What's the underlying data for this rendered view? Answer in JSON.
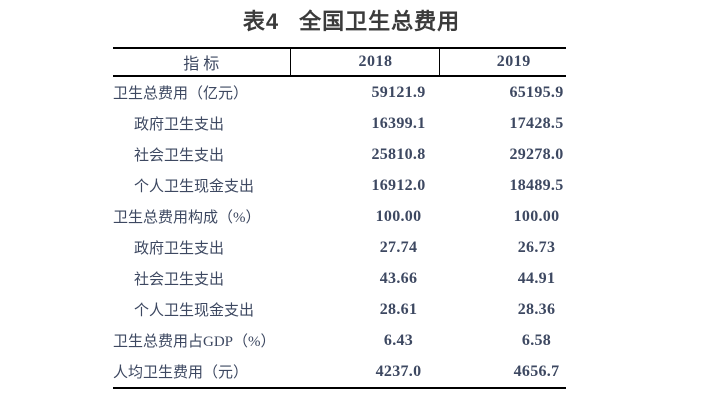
{
  "title": {
    "table_no": "表4",
    "text": "全国卫生总费用"
  },
  "table": {
    "columns": [
      "指 标",
      "2018",
      "2019"
    ],
    "rows": [
      {
        "label": "卫生总费用（亿元）",
        "indent": false,
        "v2018": "59121.9",
        "v2019": "65195.9"
      },
      {
        "label": "政府卫生支出",
        "indent": true,
        "v2018": "16399.1",
        "v2019": "17428.5"
      },
      {
        "label": "社会卫生支出",
        "indent": true,
        "v2018": "25810.8",
        "v2019": "29278.0"
      },
      {
        "label": "个人卫生现金支出",
        "indent": true,
        "v2018": "16912.0",
        "v2019": "18489.5"
      },
      {
        "label": "卫生总费用构成（%）",
        "indent": false,
        "v2018": "100.00",
        "v2019": "100.00"
      },
      {
        "label": "政府卫生支出",
        "indent": true,
        "v2018": "27.74",
        "v2019": "26.73"
      },
      {
        "label": "社会卫生支出",
        "indent": true,
        "v2018": "43.66",
        "v2019": "44.91"
      },
      {
        "label": "个人卫生现金支出",
        "indent": true,
        "v2018": "28.61",
        "v2019": "28.36"
      },
      {
        "label": "卫生总费用占GDP（%）",
        "indent": false,
        "v2018": "6.43",
        "v2019": "6.58"
      },
      {
        "label": "人均卫生费用（元）",
        "indent": false,
        "v2018": "4237.0",
        "v2019": "4656.7"
      }
    ]
  },
  "chart_data": {
    "type": "table",
    "title": "表4 全国卫生总费用",
    "categories": [
      "2018",
      "2019"
    ],
    "series": [
      {
        "name": "卫生总费用（亿元）",
        "values": [
          59121.9,
          65195.9
        ]
      },
      {
        "name": "政府卫生支出（亿元）",
        "values": [
          16399.1,
          17428.5
        ]
      },
      {
        "name": "社会卫生支出（亿元）",
        "values": [
          25810.8,
          29278.0
        ]
      },
      {
        "name": "个人卫生现金支出（亿元）",
        "values": [
          16912.0,
          18489.5
        ]
      },
      {
        "name": "卫生总费用构成（%）",
        "values": [
          100.0,
          100.0
        ]
      },
      {
        "name": "政府卫生支出构成（%）",
        "values": [
          27.74,
          26.73
        ]
      },
      {
        "name": "社会卫生支出构成（%）",
        "values": [
          43.66,
          44.91
        ]
      },
      {
        "name": "个人卫生现金支出构成（%）",
        "values": [
          28.61,
          28.36
        ]
      },
      {
        "name": "卫生总费用占GDP（%）",
        "values": [
          6.43,
          6.58
        ]
      },
      {
        "name": "人均卫生费用（元）",
        "values": [
          4237.0,
          4656.7
        ]
      }
    ]
  },
  "colors": {
    "text": "#3d4861",
    "title_text": "#3b3b3b",
    "border": "#000000",
    "background": "#ffffff"
  }
}
